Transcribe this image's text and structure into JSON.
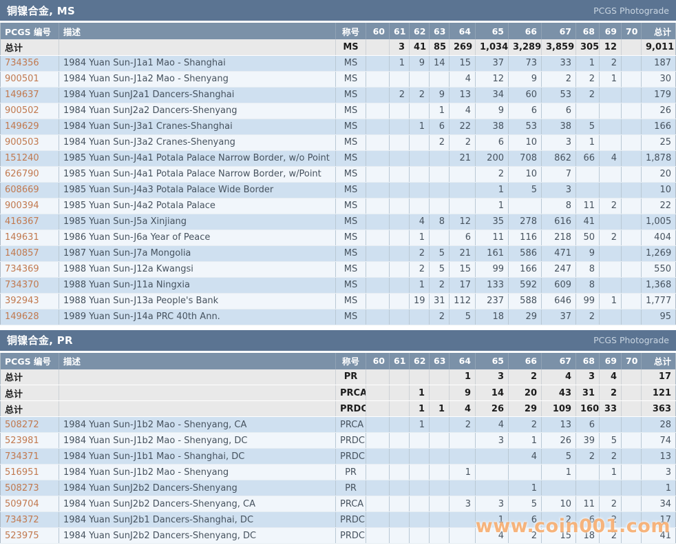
{
  "photograde_label": "PCGS Photograde",
  "total_label": "总计",
  "watermark": "www.coin001.com",
  "columns": {
    "id": "PCGS 编号",
    "desc": "描述",
    "desig": "称号",
    "total": "总计"
  },
  "grades": [
    "60",
    "61",
    "62",
    "63",
    "64",
    "65",
    "66",
    "67",
    "68",
    "69",
    "70"
  ],
  "colors": {
    "title_bar": "#5b7492",
    "header_row": "#7b91a8",
    "total_row": "#e9e9e9",
    "row_blue": "#cfe0f0",
    "row_light": "#f1f6fb",
    "id_link": "#c1794f",
    "watermark": "#f2862c"
  },
  "tables": [
    {
      "title": "铜镍合金, MS",
      "total_rows": [
        {
          "desig": "MS",
          "counts": {
            "61": "3",
            "62": "41",
            "63": "85",
            "64": "269",
            "65": "1,034",
            "66": "3,289",
            "67": "3,859",
            "68": "305",
            "69": "12"
          },
          "total": "9,011"
        }
      ],
      "rows": [
        {
          "id": "734356",
          "desc": "1984 Yuan Sun-J1a1 Mao - Shanghai",
          "desig": "MS",
          "counts": {
            "61": "1",
            "62": "9",
            "63": "14",
            "64": "15",
            "65": "37",
            "66": "73",
            "67": "33",
            "68": "1",
            "69": "2"
          },
          "total": "187"
        },
        {
          "id": "900501",
          "desc": "1984 Yuan Sun-J1a2 Mao - Shenyang",
          "desig": "MS",
          "counts": {
            "64": "4",
            "65": "12",
            "66": "9",
            "67": "2",
            "68": "2",
            "69": "1"
          },
          "total": "30"
        },
        {
          "id": "149637",
          "desc": "1984 Yuan SunJ2a1 Dancers-Shanghai",
          "desig": "MS",
          "counts": {
            "61": "2",
            "62": "2",
            "63": "9",
            "64": "13",
            "65": "34",
            "66": "60",
            "67": "53",
            "68": "2"
          },
          "total": "179"
        },
        {
          "id": "900502",
          "desc": "1984 Yuan SunJ2a2 Dancers-Shenyang",
          "desig": "MS",
          "counts": {
            "63": "1",
            "64": "4",
            "65": "9",
            "66": "6",
            "67": "6"
          },
          "total": "26"
        },
        {
          "id": "149629",
          "desc": "1984 Yuan Sun-J3a1 Cranes-Shanghai",
          "desig": "MS",
          "counts": {
            "62": "1",
            "63": "6",
            "64": "22",
            "65": "38",
            "66": "53",
            "67": "38",
            "68": "5"
          },
          "total": "166"
        },
        {
          "id": "900503",
          "desc": "1984 Yuan Sun-J3a2 Cranes-Shenyang",
          "desig": "MS",
          "counts": {
            "63": "2",
            "64": "2",
            "65": "6",
            "66": "10",
            "67": "3",
            "68": "1"
          },
          "total": "25"
        },
        {
          "id": "151240",
          "desc": "1985 Yuan Sun-J4a1 Potala Palace Narrow Border, w/o Point",
          "desig": "MS",
          "counts": {
            "64": "21",
            "65": "200",
            "66": "708",
            "67": "862",
            "68": "66",
            "69": "4"
          },
          "total": "1,878"
        },
        {
          "id": "626790",
          "desc": "1985 Yuan Sun-J4a1 Potala Palace Narrow Border, w/Point",
          "desig": "MS",
          "counts": {
            "65": "2",
            "66": "10",
            "67": "7"
          },
          "total": "20"
        },
        {
          "id": "608669",
          "desc": "1985 Yuan Sun-J4a3 Potala Palace Wide Border",
          "desig": "MS",
          "counts": {
            "65": "1",
            "66": "5",
            "67": "3"
          },
          "total": "10"
        },
        {
          "id": "900394",
          "desc": "1985 Yuan Sun-J4a2 Potala Palace",
          "desig": "MS",
          "counts": {
            "65": "1",
            "67": "8",
            "68": "11",
            "69": "2"
          },
          "total": "22"
        },
        {
          "id": "416367",
          "desc": "1985 Yuan Sun-J5a Xinjiang",
          "desig": "MS",
          "counts": {
            "62": "4",
            "63": "8",
            "64": "12",
            "65": "35",
            "66": "278",
            "67": "616",
            "68": "41"
          },
          "total": "1,005"
        },
        {
          "id": "149631",
          "desc": "1986 Yuan Sun-J6a Year of Peace",
          "desig": "MS",
          "counts": {
            "62": "1",
            "64": "6",
            "65": "11",
            "66": "116",
            "67": "218",
            "68": "50",
            "69": "2"
          },
          "total": "404"
        },
        {
          "id": "140857",
          "desc": "1987 Yuan Sun-J7a Mongolia",
          "desig": "MS",
          "counts": {
            "62": "2",
            "63": "5",
            "64": "21",
            "65": "161",
            "66": "586",
            "67": "471",
            "68": "9"
          },
          "total": "1,269"
        },
        {
          "id": "734369",
          "desc": "1988 Yuan Sun-J12a Kwangsi",
          "desig": "MS",
          "counts": {
            "62": "2",
            "63": "5",
            "64": "15",
            "65": "99",
            "66": "166",
            "67": "247",
            "68": "8"
          },
          "total": "550"
        },
        {
          "id": "734370",
          "desc": "1988 Yuan Sun-J11a Ningxia",
          "desig": "MS",
          "counts": {
            "62": "1",
            "63": "2",
            "64": "17",
            "65": "133",
            "66": "592",
            "67": "609",
            "68": "8"
          },
          "total": "1,368"
        },
        {
          "id": "392943",
          "desc": "1988 Yuan Sun-J13a People's Bank",
          "desig": "MS",
          "counts": {
            "62": "19",
            "63": "31",
            "64": "112",
            "65": "237",
            "66": "588",
            "67": "646",
            "68": "99",
            "69": "1"
          },
          "total": "1,777"
        },
        {
          "id": "149628",
          "desc": "1989 Yuan Sun-J14a PRC 40th Ann.",
          "desig": "MS",
          "counts": {
            "63": "2",
            "64": "5",
            "65": "18",
            "66": "29",
            "67": "37",
            "68": "2"
          },
          "total": "95"
        }
      ]
    },
    {
      "title": "铜镍合金, PR",
      "total_rows": [
        {
          "desig": "PR",
          "counts": {
            "64": "1",
            "65": "3",
            "66": "2",
            "67": "4",
            "68": "3",
            "69": "4"
          },
          "total": "17"
        },
        {
          "desig": "PRCA",
          "counts": {
            "62": "1",
            "64": "9",
            "65": "14",
            "66": "20",
            "67": "43",
            "68": "31",
            "69": "2"
          },
          "total": "121"
        },
        {
          "desig": "PRDC",
          "counts": {
            "62": "1",
            "63": "1",
            "64": "4",
            "65": "26",
            "66": "29",
            "67": "109",
            "68": "160",
            "69": "33"
          },
          "total": "363"
        }
      ],
      "rows": [
        {
          "id": "508272",
          "desc": "1984 Yuan Sun-J1b2 Mao - Shenyang, CA",
          "desig": "PRCA",
          "counts": {
            "62": "1",
            "64": "2",
            "65": "4",
            "66": "2",
            "67": "13",
            "68": "6"
          },
          "total": "28"
        },
        {
          "id": "523981",
          "desc": "1984 Yuan Sun-J1b2 Mao - Shenyang, DC",
          "desig": "PRDC",
          "counts": {
            "65": "3",
            "66": "1",
            "67": "26",
            "68": "39",
            "69": "5"
          },
          "total": "74"
        },
        {
          "id": "734371",
          "desc": "1984 Yuan Sun-J1b1 Mao - Shanghai, DC",
          "desig": "PRDC",
          "counts": {
            "66": "4",
            "67": "5",
            "68": "2",
            "69": "2"
          },
          "total": "13"
        },
        {
          "id": "516951",
          "desc": "1984 Yuan Sun-J1b2 Mao - Shenyang",
          "desig": "PR",
          "counts": {
            "64": "1",
            "67": "1",
            "69": "1"
          },
          "total": "3"
        },
        {
          "id": "508273",
          "desc": "1984 Yuan SunJ2b2 Dancers-Shenyang",
          "desig": "PR",
          "counts": {
            "66": "1"
          },
          "total": "1"
        },
        {
          "id": "509704",
          "desc": "1984 Yuan SunJ2b2 Dancers-Shenyang, CA",
          "desig": "PRCA",
          "counts": {
            "64": "3",
            "65": "3",
            "66": "5",
            "67": "10",
            "68": "11",
            "69": "2"
          },
          "total": "34"
        },
        {
          "id": "734372",
          "desc": "1984 Yuan SunJ2b1 Dancers-Shanghai, DC",
          "desig": "PRDC",
          "counts": {
            "65": "1",
            "66": "6",
            "67": "2",
            "68": "6",
            "69": "2"
          },
          "total": "17"
        },
        {
          "id": "523975",
          "desc": "1984 Yuan SunJ2b2 Dancers-Shenyang, DC",
          "desig": "PRDC",
          "counts": {
            "65": "4",
            "66": "2",
            "67": "15",
            "68": "18",
            "69": "2"
          },
          "total": "41"
        }
      ]
    }
  ]
}
